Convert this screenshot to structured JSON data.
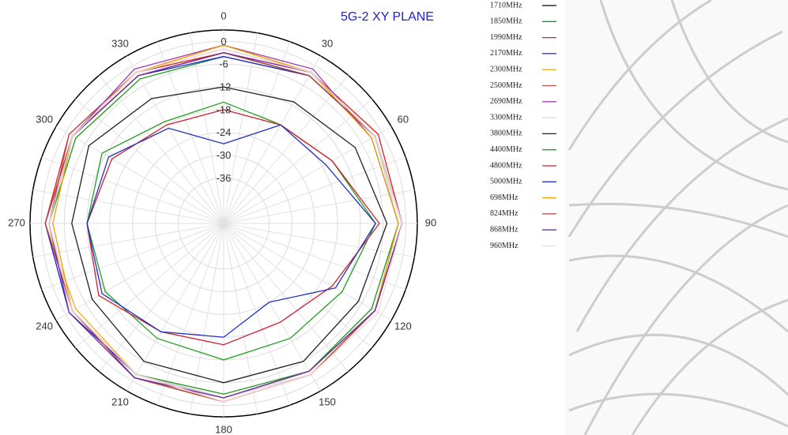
{
  "chart_data": {
    "type": "polar",
    "title": "5G-2 XY PLANE",
    "theta": [
      0,
      30,
      60,
      90,
      120,
      150,
      180,
      210,
      240,
      270,
      300,
      330
    ],
    "thetaticks": [
      0,
      30,
      60,
      90,
      120,
      150,
      180,
      210,
      240,
      270,
      300,
      330
    ],
    "rlim": [
      -48,
      3
    ],
    "rticks": [
      0,
      -6,
      -12,
      -18,
      -24,
      -30,
      -36
    ],
    "grid": true,
    "series": [
      {
        "name": "1710MHz",
        "color": "#000000",
        "values": [
          -3,
          -3,
          -2,
          -1,
          -2,
          -3,
          -2,
          -2,
          -2,
          -2,
          -2,
          -3
        ]
      },
      {
        "name": "1850MHz",
        "color": "#1a9a1a",
        "values": [
          -4,
          -3,
          -2,
          -2,
          -3,
          -3,
          -3,
          -2,
          -2,
          -2,
          -3,
          -4
        ]
      },
      {
        "name": "1990MHz",
        "color": "#e02020",
        "values": [
          -3,
          -2,
          -1,
          -1,
          -2,
          -2,
          -1,
          -1,
          -2,
          -1,
          -1,
          -2
        ]
      },
      {
        "name": "2170MHz",
        "color": "#2020d0",
        "values": [
          -4,
          -3,
          -2,
          -1,
          -2,
          -3,
          -2,
          -2,
          -1,
          -1,
          -2,
          -3
        ]
      },
      {
        "name": "2300MHz",
        "color": "#f0b020",
        "values": [
          -1,
          -2,
          -2,
          -1,
          -2,
          -2,
          -1,
          -2,
          -3,
          -1,
          -2,
          -2
        ]
      },
      {
        "name": "2500MHz",
        "color": "#c05050",
        "values": [
          -2,
          -2,
          -2,
          -1,
          -2,
          -3,
          -2,
          -2,
          -2,
          -2,
          -1,
          -2
        ]
      },
      {
        "name": "2690MHz",
        "color": "#a040b0",
        "values": [
          -1,
          -1,
          -3,
          -2,
          -2,
          -3,
          -2,
          -1,
          -2,
          -2,
          -2,
          -1
        ]
      },
      {
        "name": "3300MHz",
        "color": "#d8d8d8",
        "values": [
          -2,
          -2,
          -2,
          -2,
          -2,
          -2,
          -2,
          -2,
          -2,
          -2,
          -2,
          -2
        ]
      },
      {
        "name": "3800MHz",
        "color": "#202020",
        "values": [
          -12,
          -11,
          -8,
          -5,
          -7,
          -6,
          -6,
          -6,
          -8,
          -8,
          -7,
          -10
        ]
      },
      {
        "name": "4400MHz",
        "color": "#20a020",
        "values": [
          -16,
          -18,
          -15,
          -8,
          -12,
          -13,
          -12,
          -13,
          -12,
          -12,
          -11,
          -17
        ]
      },
      {
        "name": "4800MHz",
        "color": "#d02030",
        "values": [
          -18,
          -18,
          -15,
          -7,
          -15,
          -18,
          -16,
          -15,
          -10,
          -12,
          -14,
          -18
        ]
      },
      {
        "name": "5000MHz",
        "color": "#2030c0",
        "values": [
          -27,
          -18,
          -17,
          -8,
          -14,
          -24,
          -18,
          -15,
          -11,
          -12,
          -13,
          -19
        ]
      },
      {
        "name": "698MHz",
        "color": "#f0a000",
        "values": [
          -1,
          -2,
          -3,
          -2,
          -2,
          -2,
          -1,
          -1,
          -2,
          -3,
          -2,
          -2
        ]
      },
      {
        "name": "824MHz",
        "color": "#b04040",
        "values": [
          -3,
          -3,
          -2,
          -1,
          -2,
          -2,
          -1,
          -1,
          -2,
          -1,
          -2,
          -3
        ]
      },
      {
        "name": "868MHz",
        "color": "#7030a0",
        "values": [
          -3,
          -2,
          -2,
          -1,
          -2,
          -3,
          -2,
          -1,
          -1,
          -2,
          -2,
          -3
        ]
      },
      {
        "name": "960MHz",
        "color": "#f0d8e0",
        "values": [
          -2,
          -2,
          -2,
          -1,
          -1,
          -2,
          -1,
          -2,
          -2,
          -2,
          -2,
          -2
        ]
      }
    ]
  }
}
